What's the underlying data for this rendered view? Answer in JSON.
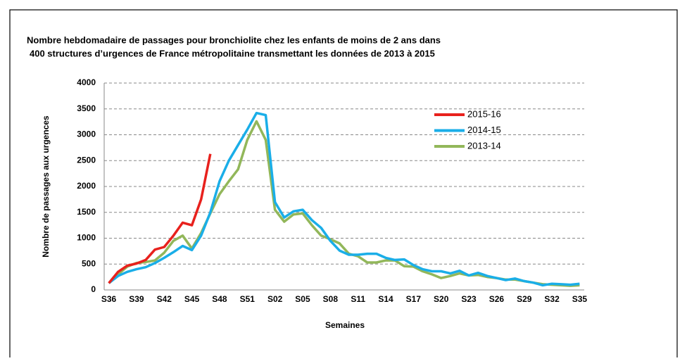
{
  "chart_data": {
    "type": "line",
    "title_lines": [
      "Nombre hebdomadaire de passages pour bronchiolite chez les enfants de moins de 2 ans dans",
      "400 structures d’urgences de France métropolitaine transmettant les données de 2013 à 2015"
    ],
    "x_label": "Semaines",
    "y_label": "Nombre de passages aux urgences",
    "categories": [
      "S36",
      null,
      null,
      "S39",
      null,
      null,
      "S42",
      null,
      null,
      "S45",
      null,
      null,
      "S48",
      null,
      null,
      "S51",
      null,
      null,
      "S02",
      null,
      null,
      "S05",
      null,
      null,
      "S08",
      null,
      null,
      "S11",
      null,
      null,
      "S14",
      null,
      null,
      "S17",
      null,
      null,
      "S20",
      null,
      null,
      "S23",
      null,
      null,
      "S26",
      null,
      null,
      "S29",
      null,
      null,
      "S32",
      null,
      null,
      "S35"
    ],
    "series": [
      {
        "name": "2015-16",
        "color": "#e8211d",
        "values": [
          130,
          350,
          470,
          510,
          580,
          780,
          830,
          1050,
          1300,
          1250,
          1750,
          2630,
          null,
          null,
          null,
          null,
          null,
          null,
          null,
          null,
          null,
          null,
          null,
          null,
          null,
          null,
          null,
          null,
          null,
          null,
          null,
          null,
          null,
          null,
          null,
          null,
          null,
          null,
          null,
          null,
          null,
          null,
          null,
          null,
          null,
          null,
          null,
          null,
          null,
          null,
          null,
          null
        ]
      },
      {
        "name": "2014-15",
        "color": "#1aaee8",
        "values": [
          130,
          270,
          350,
          400,
          440,
          520,
          620,
          730,
          850,
          770,
          1050,
          1500,
          2100,
          2500,
          2800,
          3100,
          3420,
          3380,
          1700,
          1400,
          1520,
          1550,
          1350,
          1200,
          950,
          760,
          680,
          680,
          700,
          700,
          620,
          580,
          590,
          480,
          400,
          360,
          360,
          320,
          370,
          280,
          330,
          270,
          230,
          190,
          220,
          170,
          140,
          90,
          120,
          110,
          100,
          120
        ]
      },
      {
        "name": "2013-14",
        "color": "#92b75a",
        "values": [
          130,
          300,
          450,
          520,
          540,
          570,
          720,
          950,
          1050,
          800,
          1100,
          1480,
          1850,
          2100,
          2330,
          2900,
          3260,
          2900,
          1550,
          1320,
          1460,
          1480,
          1250,
          1050,
          980,
          900,
          700,
          650,
          530,
          530,
          570,
          570,
          460,
          450,
          360,
          300,
          230,
          270,
          320,
          280,
          290,
          250,
          230,
          200,
          200,
          170,
          140,
          110,
          100,
          90,
          80,
          90
        ]
      }
    ],
    "ylim": [
      0,
      4000
    ],
    "yticks": [
      0,
      500,
      1000,
      1500,
      2000,
      2500,
      3000,
      3500,
      4000
    ],
    "grid": true
  }
}
